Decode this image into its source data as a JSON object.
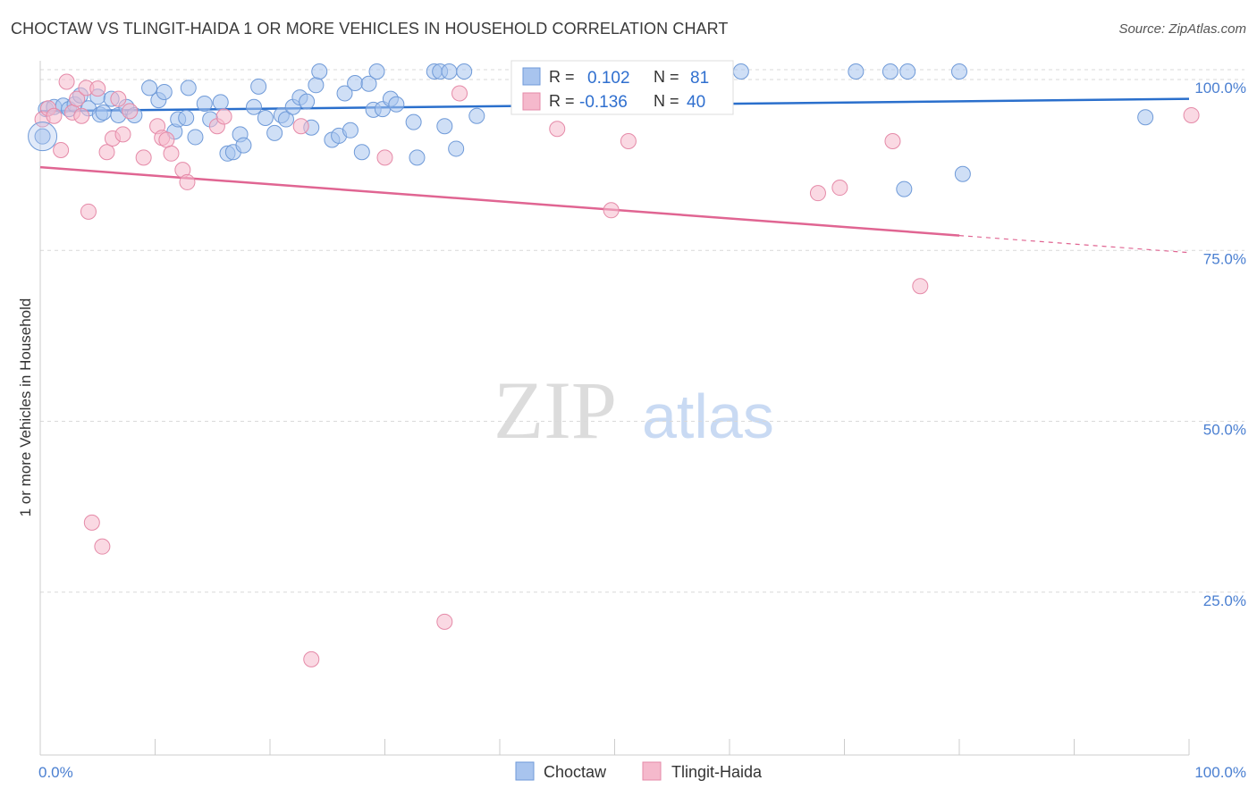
{
  "title": "CHOCTAW VS TLINGIT-HAIDA 1 OR MORE VEHICLES IN HOUSEHOLD CORRELATION CHART",
  "source": "Source: ZipAtlas.com",
  "watermark": {
    "zip": "ZIP",
    "atlas": "atlas"
  },
  "colors": {
    "choctaw_fill": "#a8c4ee",
    "choctaw_stroke": "#6f9ad8",
    "choctaw_line": "#2a6fcc",
    "tlingit_fill": "#f5b9cc",
    "tlingit_stroke": "#e58aa8",
    "tlingit_line": "#e06592",
    "tick_label": "#4a7fd1",
    "grid": "#d9d9d9"
  },
  "stats_box": {
    "rows": [
      {
        "series": "Choctaw",
        "r_label": "R =",
        "r_value": "0.102",
        "n_label": "N =",
        "n_value": "81"
      },
      {
        "series": "Tlingit-Haida",
        "r_label": "R =",
        "r_value": "-0.136",
        "n_label": "N =",
        "n_value": "40"
      }
    ]
  },
  "legend": {
    "items": [
      "Choctaw",
      "Tlingit-Haida"
    ]
  },
  "chart_data": {
    "type": "scatter",
    "title": "CHOCTAW VS TLINGIT-HAIDA 1 OR MORE VEHICLES IN HOUSEHOLD CORRELATION CHART",
    "xlabel": "",
    "ylabel": "1 or more Vehicles in Household",
    "xlim": [
      0,
      100
    ],
    "ylim": [
      0,
      100
    ],
    "x_tick_labels": [
      "0.0%",
      "100.0%"
    ],
    "y_ticks": [
      25,
      50,
      75,
      100
    ],
    "y_tick_labels": [
      "25.0%",
      "50.0%",
      "75.0%",
      "100.0%"
    ],
    "grid": "horizontal dashed",
    "legend_position": "bottom-center",
    "series": [
      {
        "name": "Choctaw",
        "r": 0.102,
        "n": 81,
        "trend": {
          "x": [
            0,
            100
          ],
          "y": [
            94.2,
            96.0
          ]
        },
        "points": [
          [
            0.2,
            90.5
          ],
          [
            0.5,
            94.5
          ],
          [
            1.2,
            94.8
          ],
          [
            2.0,
            95.0
          ],
          [
            2.5,
            94.5
          ],
          [
            3.0,
            95.2
          ],
          [
            3.5,
            96.5
          ],
          [
            4.2,
            94.6
          ],
          [
            5.0,
            96.3
          ],
          [
            5.2,
            93.7
          ],
          [
            5.5,
            94.0
          ],
          [
            6.2,
            96.0
          ],
          [
            6.8,
            93.6
          ],
          [
            7.5,
            94.8
          ],
          [
            8.2,
            93.6
          ],
          [
            9.5,
            97.6
          ],
          [
            10.3,
            95.8
          ],
          [
            10.8,
            97.0
          ],
          [
            11.7,
            91.2
          ],
          [
            12.0,
            93.0
          ],
          [
            12.7,
            93.2
          ],
          [
            12.9,
            97.6
          ],
          [
            13.5,
            90.4
          ],
          [
            14.3,
            95.3
          ],
          [
            14.8,
            93.0
          ],
          [
            15.7,
            95.5
          ],
          [
            16.3,
            88.0
          ],
          [
            16.8,
            88.2
          ],
          [
            17.4,
            90.8
          ],
          [
            17.7,
            89.2
          ],
          [
            18.6,
            94.8
          ],
          [
            19.0,
            97.8
          ],
          [
            19.6,
            93.2
          ],
          [
            20.4,
            91.0
          ],
          [
            21.0,
            93.6
          ],
          [
            21.4,
            93.0
          ],
          [
            22.0,
            94.8
          ],
          [
            22.6,
            96.2
          ],
          [
            23.2,
            95.6
          ],
          [
            23.6,
            91.8
          ],
          [
            24.0,
            98.0
          ],
          [
            24.3,
            100.0
          ],
          [
            25.4,
            90.0
          ],
          [
            26.0,
            90.6
          ],
          [
            26.5,
            96.8
          ],
          [
            27.0,
            91.4
          ],
          [
            27.4,
            98.3
          ],
          [
            28.0,
            88.2
          ],
          [
            28.6,
            98.2
          ],
          [
            29.0,
            94.4
          ],
          [
            29.3,
            100.0
          ],
          [
            29.8,
            94.5
          ],
          [
            30.5,
            96.0
          ],
          [
            31.0,
            95.2
          ],
          [
            32.5,
            92.6
          ],
          [
            32.8,
            87.4
          ],
          [
            34.3,
            100.0
          ],
          [
            34.8,
            100.0
          ],
          [
            35.2,
            92.0
          ],
          [
            35.6,
            100.0
          ],
          [
            36.2,
            88.7
          ],
          [
            36.9,
            100.0
          ],
          [
            38.0,
            93.5
          ],
          [
            42.0,
            100.0
          ],
          [
            43.5,
            100.0
          ],
          [
            44.5,
            100.0
          ],
          [
            46.0,
            100.0
          ],
          [
            47.0,
            100.0
          ],
          [
            48.0,
            100.0
          ],
          [
            49.0,
            100.0
          ],
          [
            50.2,
            100.0
          ],
          [
            55.0,
            100.0
          ],
          [
            59.0,
            100.0
          ],
          [
            61.0,
            100.0
          ],
          [
            71.0,
            100.0
          ],
          [
            74.0,
            100.0
          ],
          [
            75.5,
            100.0
          ],
          [
            80.0,
            100.0
          ],
          [
            75.2,
            82.8
          ],
          [
            80.3,
            85.0
          ],
          [
            96.2,
            93.3
          ]
        ]
      },
      {
        "name": "Tlingit-Haida",
        "r": -0.136,
        "n": 40,
        "trend": {
          "x": [
            0,
            80
          ],
          "y": [
            86.0,
            76.0
          ]
        },
        "trend_dashed": {
          "x": [
            80,
            100
          ],
          "y": [
            76.0,
            73.5
          ]
        },
        "points": [
          [
            0.2,
            93.0
          ],
          [
            0.7,
            94.6
          ],
          [
            1.2,
            93.5
          ],
          [
            1.8,
            88.5
          ],
          [
            2.3,
            98.5
          ],
          [
            2.8,
            94.0
          ],
          [
            3.2,
            96.0
          ],
          [
            3.6,
            93.5
          ],
          [
            4.0,
            97.6
          ],
          [
            4.2,
            79.5
          ],
          [
            4.5,
            34.0
          ],
          [
            5.0,
            97.5
          ],
          [
            5.4,
            30.5
          ],
          [
            5.8,
            88.2
          ],
          [
            6.3,
            90.2
          ],
          [
            6.8,
            96.0
          ],
          [
            7.2,
            90.8
          ],
          [
            7.8,
            94.2
          ],
          [
            9.0,
            87.4
          ],
          [
            10.2,
            92.0
          ],
          [
            10.6,
            90.3
          ],
          [
            11.0,
            90.0
          ],
          [
            11.4,
            88.0
          ],
          [
            12.4,
            85.6
          ],
          [
            12.8,
            83.8
          ],
          [
            15.4,
            92.0
          ],
          [
            16.0,
            93.4
          ],
          [
            22.7,
            92.0
          ],
          [
            23.6,
            14.0
          ],
          [
            30.0,
            87.4
          ],
          [
            35.2,
            19.5
          ],
          [
            36.5,
            96.8
          ],
          [
            45.0,
            91.6
          ],
          [
            49.7,
            79.7
          ],
          [
            51.2,
            89.8
          ],
          [
            67.7,
            82.2
          ],
          [
            69.6,
            83.0
          ],
          [
            74.2,
            89.8
          ],
          [
            76.6,
            68.6
          ],
          [
            100.2,
            93.6
          ]
        ]
      }
    ]
  }
}
